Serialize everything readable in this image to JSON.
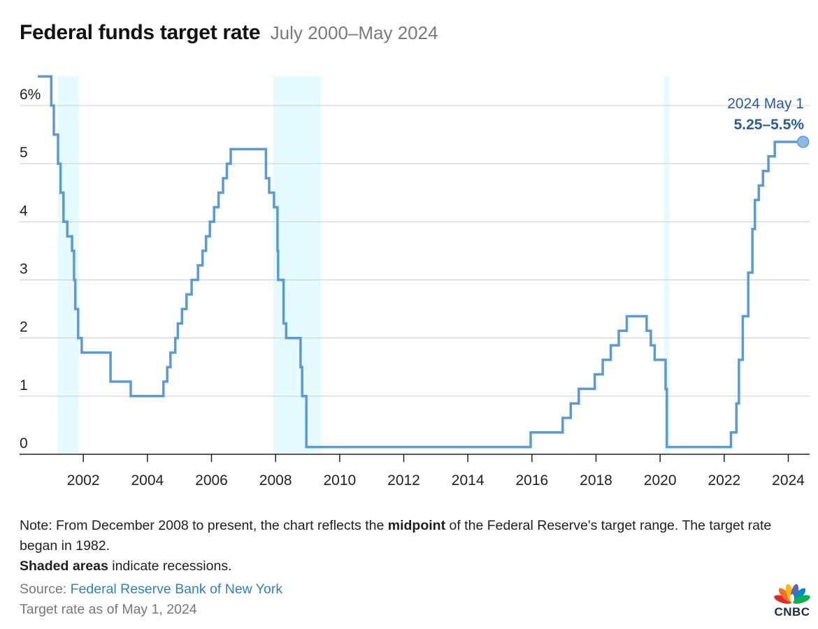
{
  "header": {
    "title": "Federal funds target rate",
    "subtitle": "July 2000–May 2024"
  },
  "annotation": {
    "date_label": "2024 May 1",
    "value_label": "5.25–5.5%"
  },
  "notes": {
    "note_prefix": "Note: From December 2008 to present, the chart reflects the ",
    "note_bold": "midpoint",
    "note_suffix": " of the Federal Reserve's target range. The target rate began in 1982.",
    "shaded_bold": "Shaded areas",
    "shaded_suffix": " indicate recessions."
  },
  "source": {
    "label": "Source: ",
    "link_text": "Federal Reserve Bank of New York",
    "asof": "Target rate as of May 1, 2024"
  },
  "logo": {
    "text": "CNBC",
    "icon": "peacock-icon"
  },
  "colors": {
    "line": "#5b9bd5",
    "recession": "#e6fbff",
    "annotation": "#2c5aa0",
    "grid": "#cccccc"
  },
  "chart_data": {
    "type": "line",
    "step": true,
    "x_axis": {
      "ticks": [
        2002,
        2004,
        2006,
        2008,
        2010,
        2012,
        2014,
        2016,
        2018,
        2020,
        2022,
        2024
      ],
      "range": [
        2000.5,
        2024.75
      ]
    },
    "y_axis": {
      "ticks": [
        0,
        1,
        2,
        3,
        4,
        5,
        6
      ],
      "tick_labels": [
        "0",
        "1",
        "2",
        "3",
        "4",
        "5",
        "6%"
      ],
      "range": [
        0,
        6.5
      ]
    },
    "grid": true,
    "recessions": [
      [
        2001.2,
        2001.87
      ],
      [
        2007.92,
        2009.42
      ],
      [
        2020.12,
        2020.29
      ]
    ],
    "series": [
      {
        "points": [
          [
            2000.58,
            6.5
          ],
          [
            2001.0,
            6.5
          ],
          [
            2001.0,
            6.0
          ],
          [
            2001.08,
            6.0
          ],
          [
            2001.08,
            5.5
          ],
          [
            2001.21,
            5.5
          ],
          [
            2001.21,
            5.0
          ],
          [
            2001.29,
            5.0
          ],
          [
            2001.29,
            4.5
          ],
          [
            2001.38,
            4.5
          ],
          [
            2001.38,
            4.0
          ],
          [
            2001.5,
            4.0
          ],
          [
            2001.5,
            3.75
          ],
          [
            2001.65,
            3.75
          ],
          [
            2001.65,
            3.5
          ],
          [
            2001.71,
            3.5
          ],
          [
            2001.71,
            3.0
          ],
          [
            2001.75,
            3.0
          ],
          [
            2001.75,
            2.5
          ],
          [
            2001.84,
            2.5
          ],
          [
            2001.84,
            2.0
          ],
          [
            2001.95,
            2.0
          ],
          [
            2001.95,
            1.75
          ],
          [
            2002.85,
            1.75
          ],
          [
            2002.85,
            1.25
          ],
          [
            2003.48,
            1.25
          ],
          [
            2003.48,
            1.0
          ],
          [
            2004.5,
            1.0
          ],
          [
            2004.5,
            1.25
          ],
          [
            2004.62,
            1.25
          ],
          [
            2004.62,
            1.5
          ],
          [
            2004.72,
            1.5
          ],
          [
            2004.72,
            1.75
          ],
          [
            2004.87,
            1.75
          ],
          [
            2004.87,
            2.0
          ],
          [
            2004.95,
            2.0
          ],
          [
            2004.95,
            2.25
          ],
          [
            2005.08,
            2.25
          ],
          [
            2005.08,
            2.5
          ],
          [
            2005.22,
            2.5
          ],
          [
            2005.22,
            2.75
          ],
          [
            2005.38,
            2.75
          ],
          [
            2005.38,
            3.0
          ],
          [
            2005.58,
            3.0
          ],
          [
            2005.58,
            3.25
          ],
          [
            2005.72,
            3.25
          ],
          [
            2005.72,
            3.5
          ],
          [
            2005.83,
            3.5
          ],
          [
            2005.83,
            3.75
          ],
          [
            2005.95,
            3.75
          ],
          [
            2005.95,
            4.0
          ],
          [
            2006.08,
            4.0
          ],
          [
            2006.08,
            4.25
          ],
          [
            2006.22,
            4.25
          ],
          [
            2006.22,
            4.5
          ],
          [
            2006.36,
            4.5
          ],
          [
            2006.36,
            4.75
          ],
          [
            2006.48,
            4.75
          ],
          [
            2006.48,
            5.0
          ],
          [
            2006.6,
            5.0
          ],
          [
            2006.6,
            5.25
          ],
          [
            2007.7,
            5.25
          ],
          [
            2007.7,
            4.75
          ],
          [
            2007.8,
            4.75
          ],
          [
            2007.8,
            4.5
          ],
          [
            2007.95,
            4.5
          ],
          [
            2007.95,
            4.25
          ],
          [
            2008.06,
            4.25
          ],
          [
            2008.06,
            3.5
          ],
          [
            2008.08,
            3.5
          ],
          [
            2008.08,
            3.0
          ],
          [
            2008.25,
            3.0
          ],
          [
            2008.25,
            2.25
          ],
          [
            2008.33,
            2.25
          ],
          [
            2008.33,
            2.0
          ],
          [
            2008.78,
            2.0
          ],
          [
            2008.78,
            1.5
          ],
          [
            2008.83,
            1.5
          ],
          [
            2008.83,
            1.0
          ],
          [
            2008.96,
            1.0
          ],
          [
            2008.96,
            0.125
          ],
          [
            2015.96,
            0.125
          ],
          [
            2015.96,
            0.375
          ],
          [
            2016.96,
            0.375
          ],
          [
            2016.96,
            0.625
          ],
          [
            2017.21,
            0.625
          ],
          [
            2017.21,
            0.875
          ],
          [
            2017.46,
            0.875
          ],
          [
            2017.46,
            1.125
          ],
          [
            2017.96,
            1.125
          ],
          [
            2017.96,
            1.375
          ],
          [
            2018.21,
            1.375
          ],
          [
            2018.21,
            1.625
          ],
          [
            2018.46,
            1.625
          ],
          [
            2018.46,
            1.875
          ],
          [
            2018.71,
            1.875
          ],
          [
            2018.71,
            2.125
          ],
          [
            2018.96,
            2.125
          ],
          [
            2018.96,
            2.375
          ],
          [
            2019.58,
            2.375
          ],
          [
            2019.58,
            2.125
          ],
          [
            2019.71,
            2.125
          ],
          [
            2019.71,
            1.875
          ],
          [
            2019.83,
            1.875
          ],
          [
            2019.83,
            1.625
          ],
          [
            2020.17,
            1.625
          ],
          [
            2020.17,
            1.125
          ],
          [
            2020.21,
            1.125
          ],
          [
            2020.21,
            0.125
          ],
          [
            2022.21,
            0.125
          ],
          [
            2022.21,
            0.375
          ],
          [
            2022.38,
            0.375
          ],
          [
            2022.38,
            0.875
          ],
          [
            2022.46,
            0.875
          ],
          [
            2022.46,
            1.625
          ],
          [
            2022.58,
            1.625
          ],
          [
            2022.58,
            2.375
          ],
          [
            2022.75,
            2.375
          ],
          [
            2022.75,
            3.125
          ],
          [
            2022.88,
            3.125
          ],
          [
            2022.88,
            3.875
          ],
          [
            2022.96,
            3.875
          ],
          [
            2022.96,
            4.375
          ],
          [
            2023.08,
            4.375
          ],
          [
            2023.08,
            4.625
          ],
          [
            2023.21,
            4.625
          ],
          [
            2023.21,
            4.875
          ],
          [
            2023.38,
            4.875
          ],
          [
            2023.38,
            5.125
          ],
          [
            2023.58,
            5.125
          ],
          [
            2023.58,
            5.375
          ],
          [
            2024.33,
            5.375
          ]
        ]
      }
    ],
    "end_point": [
      2024.33,
      5.375
    ]
  }
}
